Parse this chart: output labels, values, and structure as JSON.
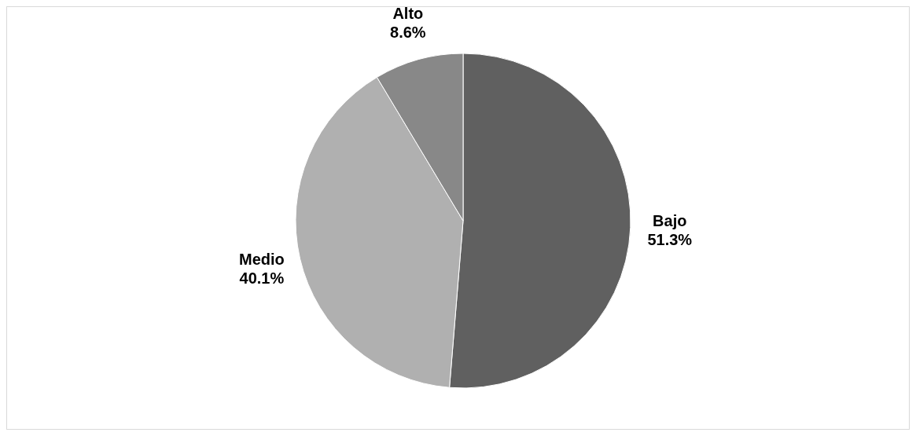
{
  "chart_data": {
    "type": "pie",
    "categories": [
      "Bajo",
      "Medio",
      "Alto"
    ],
    "values": [
      51.3,
      40.1,
      8.6
    ],
    "colors": [
      "#606060",
      "#b0b0b0",
      "#888888"
    ],
    "value_labels": [
      "51.3%",
      "40.1%",
      "8.6%"
    ]
  }
}
